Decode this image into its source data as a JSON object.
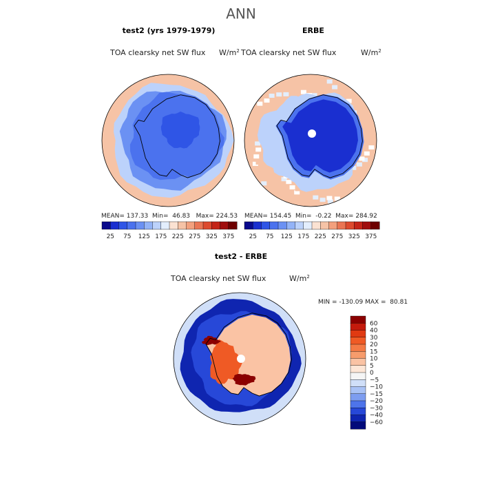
{
  "page_title": "ANN",
  "colors": {
    "coast": "#000000",
    "ocean_bg": "#fbe2d2"
  },
  "chart_data": [
    {
      "type": "heatmap",
      "projection": "south-polar-stereographic",
      "title": "test2 (yrs 1979-1979)",
      "variable": "TOA clearsky net SW flux",
      "units_base": "W/m",
      "units_exp": "2",
      "stats": {
        "mean_label": "MEAN=",
        "mean": "137.33",
        "min_label": "Min=",
        "min": "46.83",
        "max_label": "Max=",
        "max": "224.53"
      },
      "colorbar": {
        "orientation": "horizontal",
        "tick_labels": [
          "25",
          "75",
          "125",
          "175",
          "225",
          "275",
          "325",
          "375"
        ],
        "levels": [
          25,
          50,
          75,
          100,
          125,
          150,
          175,
          200,
          225,
          250,
          275,
          300,
          325,
          350,
          375
        ],
        "colors": [
          "#0a0a8c",
          "#1a2fd0",
          "#2f55e6",
          "#4b72ee",
          "#6b91f3",
          "#93b3f7",
          "#bcd2fb",
          "#e3eefd",
          "#fbe2d2",
          "#f6c3a6",
          "#f3a07d",
          "#ea7553",
          "#dd4a2e",
          "#c42417",
          "#a00d0d",
          "#6e0000"
        ]
      },
      "zones": [
        {
          "region": "continent interior",
          "value": 60
        },
        {
          "region": "continent",
          "value": 75
        },
        {
          "region": "coastal band",
          "value": 95
        },
        {
          "region": "sea ice",
          "value": 120
        },
        {
          "region": "outer sea ice",
          "value": 160
        },
        {
          "region": "ocean",
          "value": 225
        }
      ]
    },
    {
      "type": "heatmap",
      "projection": "south-polar-stereographic",
      "title": "ERBE",
      "variable": "TOA clearsky net SW flux",
      "units_base": "W/m",
      "units_exp": "2",
      "stats": {
        "mean_label": "MEAN=",
        "mean": "154.45",
        "min_label": "Min=",
        "min": "-0.22",
        "max_label": "Max=",
        "max": "284.92"
      },
      "colorbar": {
        "orientation": "horizontal",
        "tick_labels": [
          "25",
          "75",
          "125",
          "175",
          "225",
          "275",
          "325",
          "375"
        ]
      },
      "zones": [
        {
          "region": "continent",
          "value": 40
        },
        {
          "region": "coastal band",
          "value": 80
        },
        {
          "region": "sea ice",
          "value": 170
        },
        {
          "region": "ocean",
          "value": 240
        },
        {
          "region": "pole (missing)",
          "value": null
        }
      ]
    },
    {
      "type": "heatmap",
      "projection": "south-polar-stereographic",
      "title": "test2 - ERBE",
      "variable": "TOA clearsky net SW flux",
      "units_base": "W/m",
      "units_exp": "2",
      "stats": {
        "min_label": "MIN =",
        "min": "-130.09",
        "max_label": "MAX =",
        "max": "80.81"
      },
      "colorbar": {
        "orientation": "vertical",
        "tick_labels": [
          "60",
          "40",
          "30",
          "20",
          "15",
          "10",
          "5",
          "0",
          "−5",
          "−10",
          "−15",
          "−20",
          "−30",
          "−40",
          "−60"
        ],
        "levels": [
          60,
          40,
          30,
          20,
          15,
          10,
          5,
          0,
          -5,
          -10,
          -15,
          -20,
          -30,
          -40,
          -60
        ],
        "colors": [
          "#8b0000",
          "#c41a0c",
          "#e03a12",
          "#ef5a25",
          "#f47a45",
          "#f79c6c",
          "#fac3a4",
          "#fde6d6",
          "#f5f5f5",
          "#d0dff8",
          "#a9c2f5",
          "#7d9df0",
          "#4e74ea",
          "#2748d8",
          "#0f25b0",
          "#020a7a"
        ]
      },
      "zones": [
        {
          "region": "open ocean ring",
          "value": -55
        },
        {
          "region": "inner ocean",
          "value": -35
        },
        {
          "region": "outer ocean",
          "value": -8
        },
        {
          "region": "east antarctica",
          "value": 8
        },
        {
          "region": "west antarctica",
          "value": 22
        },
        {
          "region": "ross ice shelf",
          "value": 60
        }
      ]
    }
  ]
}
